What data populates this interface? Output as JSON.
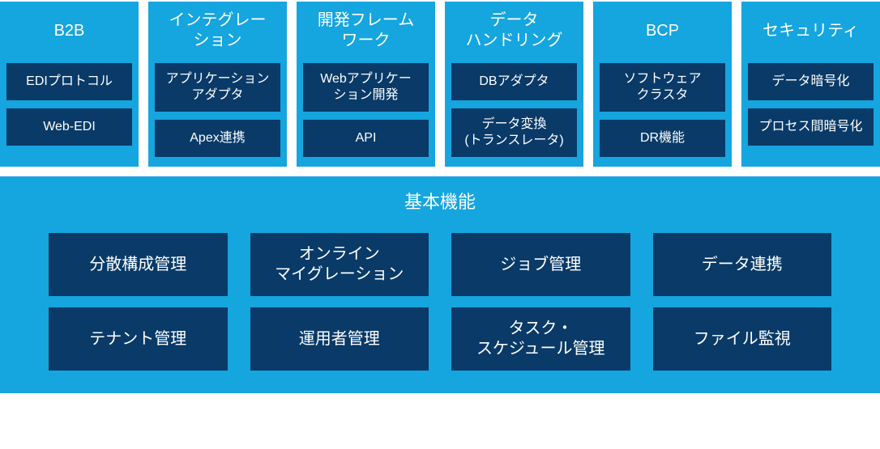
{
  "colors": {
    "panel_bg": "#15a5df",
    "chip_bg": "#093a68",
    "text": "#ffffff"
  },
  "columns": [
    {
      "title": "B2B",
      "items": [
        "EDIプロトコル",
        "Web-EDI"
      ]
    },
    {
      "title": "インテグレー\nション",
      "items": [
        "アプリケーション\nアダプタ",
        "Apex連携"
      ]
    },
    {
      "title": "開発フレーム\nワーク",
      "items": [
        "Webアプリケー\nション開発",
        "API"
      ]
    },
    {
      "title": "データ\nハンドリング",
      "items": [
        "DBアダプタ",
        "データ変換\n(トランスレータ)"
      ]
    },
    {
      "title": "BCP",
      "items": [
        "ソフトウェア\nクラスタ",
        "DR機能"
      ]
    },
    {
      "title": "セキュリティ",
      "items": [
        "データ暗号化",
        "プロセス間暗号化"
      ]
    }
  ],
  "bottom": {
    "title": "基本機能",
    "items": [
      "分散構成管理",
      "オンライン\nマイグレーション",
      "ジョブ管理",
      "データ連携",
      "テナント管理",
      "運用者管理",
      "タスク・\nスケジュール管理",
      "ファイル監視"
    ]
  }
}
